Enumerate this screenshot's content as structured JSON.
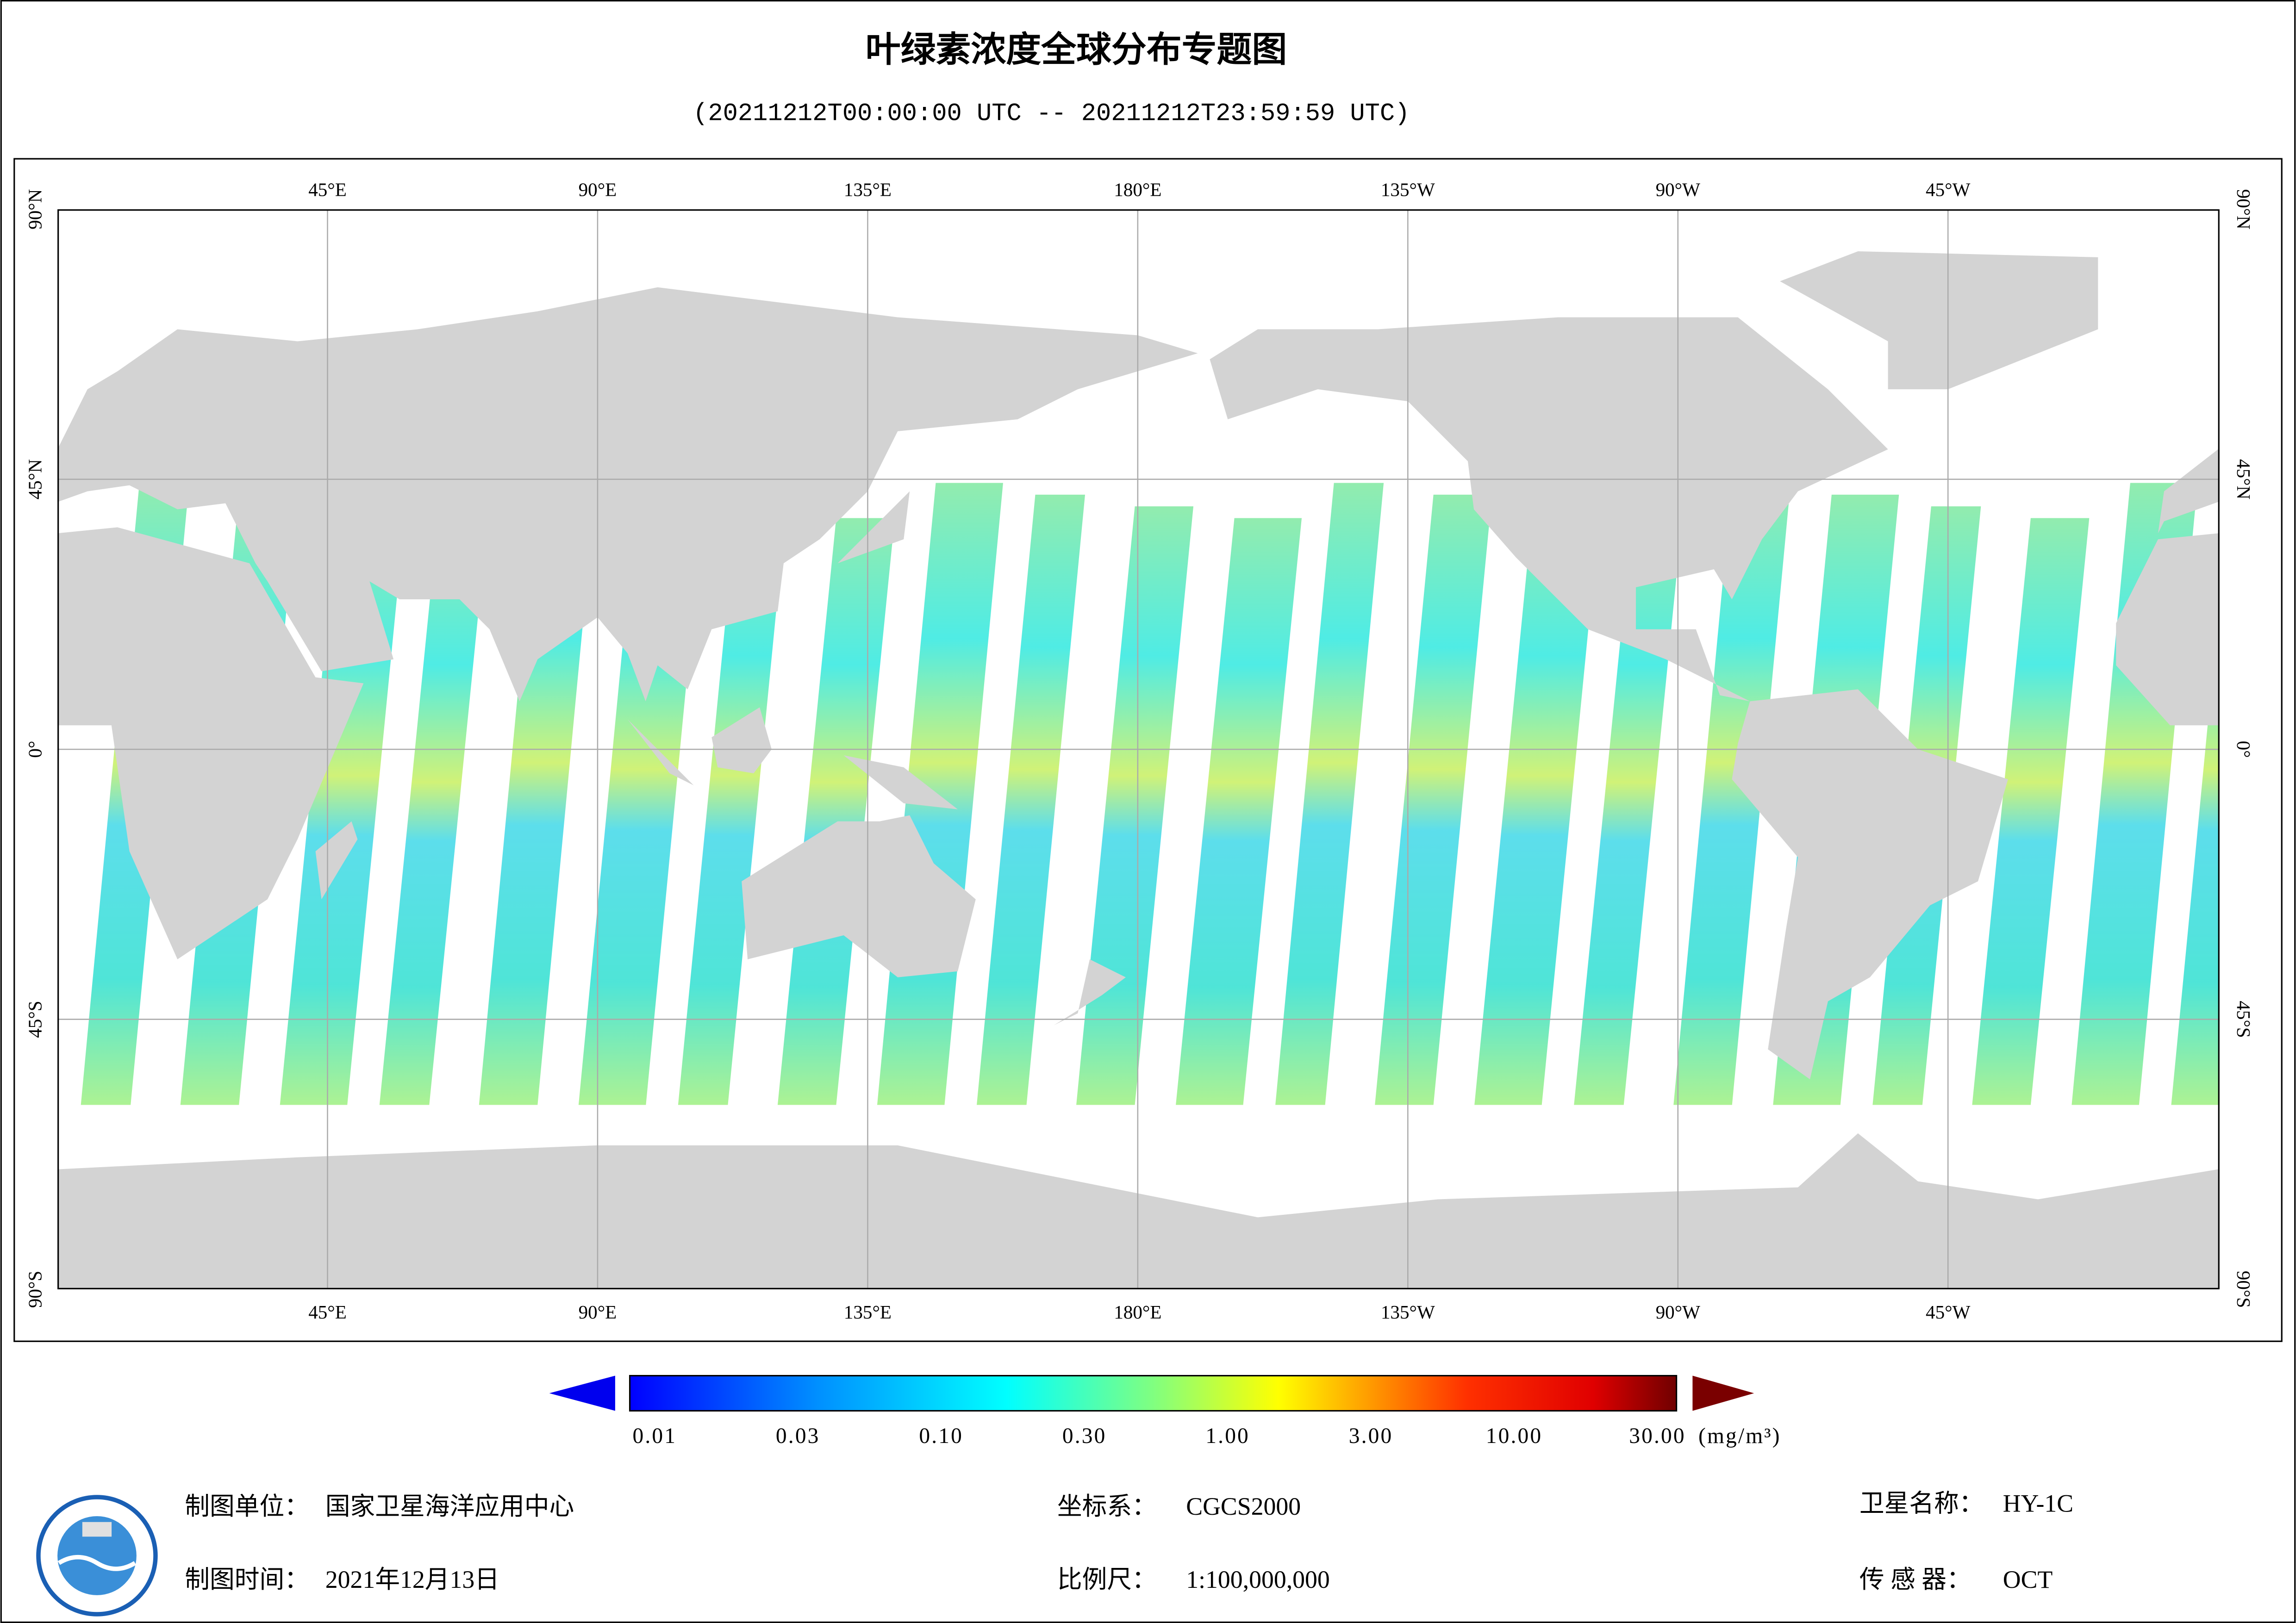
{
  "header": {
    "title": "叶绿素浓度全球分布专题图",
    "subtitle": "(20211212T00:00:00 UTC -- 20211212T23:59:59 UTC)"
  },
  "map": {
    "lon_labels": [
      "45°E",
      "90°E",
      "135°E",
      "180°E",
      "135°W",
      "90°W",
      "45°W"
    ],
    "lat_labels": [
      "90°N",
      "45°N",
      "0°",
      "45°S",
      "90°S"
    ]
  },
  "legend": {
    "ticks": [
      "0.01",
      "0.03",
      "0.10",
      "0.30",
      "1.00",
      "3.00",
      "10.00",
      "30.00"
    ],
    "unit": "(mg/m³)"
  },
  "footer": {
    "unit_label": "制图单位：",
    "unit": "国家卫星海洋应用中心",
    "coord_label": "坐标系：",
    "coord": "CGCS2000",
    "satellite_label": "卫星名称：",
    "satellite": "HY-1C",
    "time_label": "制图时间：",
    "time": "2021年12月13日",
    "scale_label": "比例尺：",
    "scale": "1:100,000,000",
    "sensor_label": "传 感 器：",
    "sensor": "OCT"
  }
}
